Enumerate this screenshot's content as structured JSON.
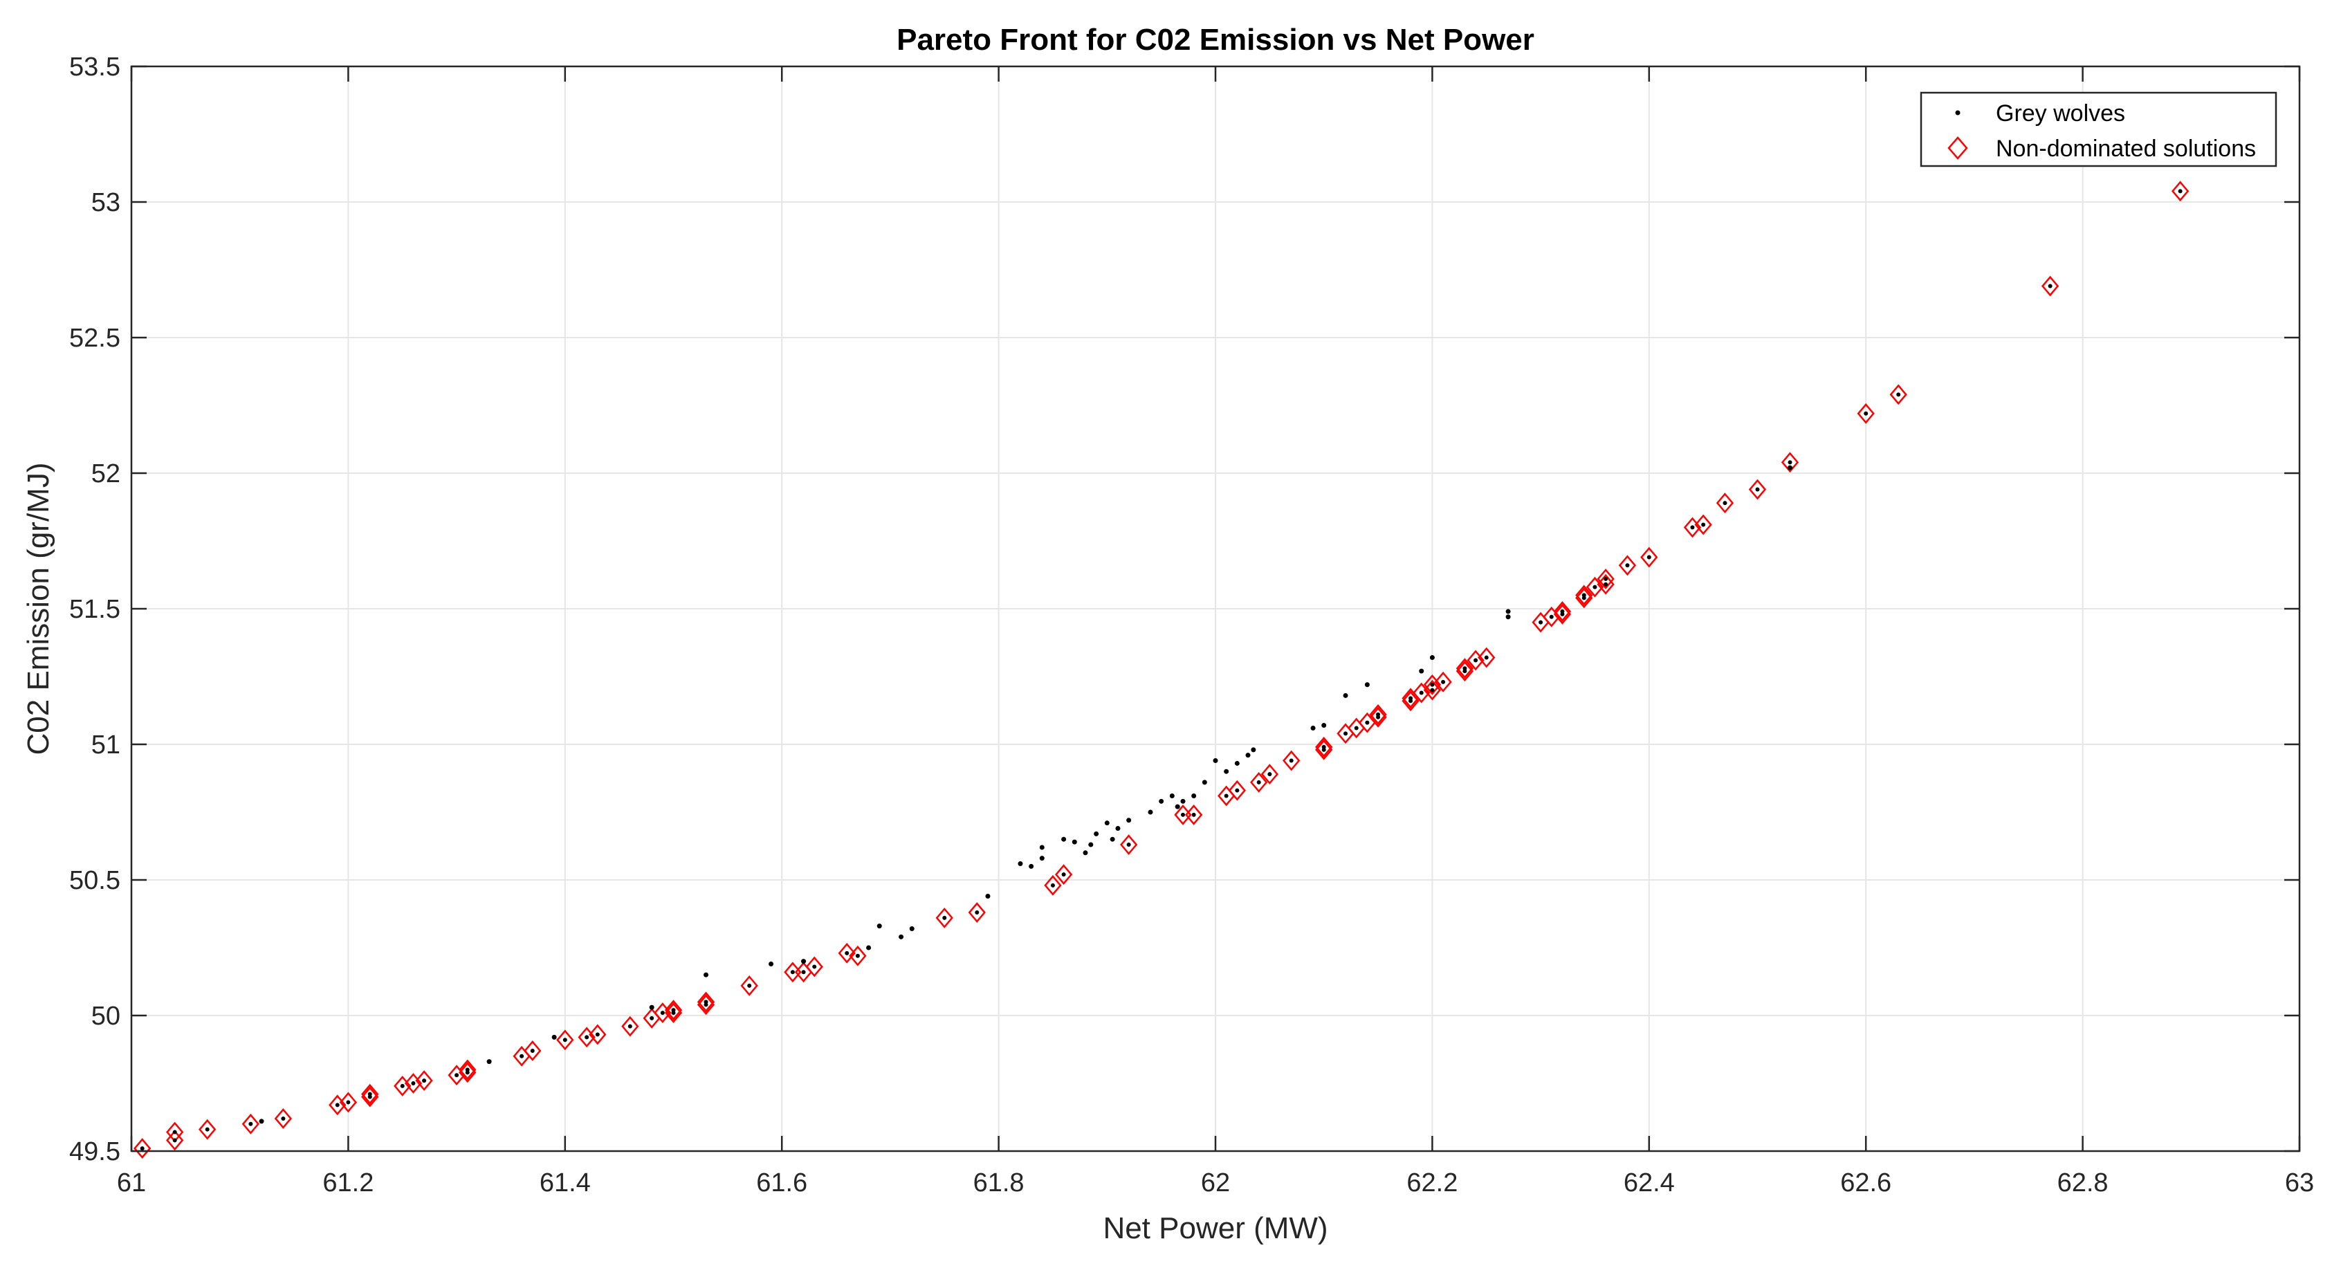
{
  "chart_data": {
    "type": "scatter",
    "title": "Pareto Front for C02 Emission vs Net Power",
    "xlabel": "Net Power (MW)",
    "ylabel": "C02 Emission (gr/MJ)",
    "xlim": [
      61,
      63
    ],
    "ylim": [
      49.5,
      53.5
    ],
    "xticks": [
      "61",
      "61.2",
      "61.4",
      "61.6",
      "61.8",
      "62",
      "62.2",
      "62.4",
      "62.6",
      "62.8",
      "63"
    ],
    "yticks": [
      "49.5",
      "50",
      "50.5",
      "51",
      "51.5",
      "52",
      "52.5",
      "53",
      "53.5"
    ],
    "grid": true,
    "legend_position": "top-right",
    "colors": {
      "wolves": "#000000",
      "nondominated": "#ff0000",
      "grid": "#e6e6e6",
      "axes": "#262626"
    },
    "series": [
      {
        "name": "Grey wolves",
        "marker": "dot",
        "points": [
          [
            61.12,
            49.61
          ],
          [
            61.33,
            49.83
          ],
          [
            61.39,
            49.92
          ],
          [
            61.48,
            50.03
          ],
          [
            61.53,
            50.15
          ],
          [
            61.59,
            50.19
          ],
          [
            61.62,
            50.2
          ],
          [
            61.68,
            50.25
          ],
          [
            61.69,
            50.33
          ],
          [
            61.71,
            50.29
          ],
          [
            61.72,
            50.32
          ],
          [
            61.79,
            50.44
          ],
          [
            61.82,
            50.56
          ],
          [
            61.83,
            50.55
          ],
          [
            61.84,
            50.58
          ],
          [
            61.84,
            50.62
          ],
          [
            61.86,
            50.65
          ],
          [
            61.87,
            50.64
          ],
          [
            61.88,
            50.6
          ],
          [
            61.885,
            50.63
          ],
          [
            61.89,
            50.67
          ],
          [
            61.9,
            50.71
          ],
          [
            61.905,
            50.65
          ],
          [
            61.91,
            50.69
          ],
          [
            61.92,
            50.72
          ],
          [
            61.94,
            50.75
          ],
          [
            61.95,
            50.79
          ],
          [
            61.96,
            50.81
          ],
          [
            61.965,
            50.77
          ],
          [
            61.97,
            50.79
          ],
          [
            61.98,
            50.81
          ],
          [
            61.99,
            50.86
          ],
          [
            62.0,
            50.94
          ],
          [
            62.01,
            50.9
          ],
          [
            62.02,
            50.93
          ],
          [
            62.03,
            50.96
          ],
          [
            62.035,
            50.98
          ],
          [
            62.09,
            51.06
          ],
          [
            62.1,
            51.07
          ],
          [
            62.12,
            51.18
          ],
          [
            62.14,
            51.22
          ],
          [
            62.19,
            51.27
          ],
          [
            62.2,
            51.32
          ],
          [
            62.27,
            51.47
          ],
          [
            62.27,
            51.49
          ],
          [
            62.53,
            52.02
          ]
        ]
      },
      {
        "name": "Non-dominated solutions",
        "marker": "diamond",
        "points": [
          [
            61.01,
            49.51
          ],
          [
            61.04,
            49.54
          ],
          [
            61.04,
            49.57
          ],
          [
            61.07,
            49.58
          ],
          [
            61.11,
            49.6
          ],
          [
            61.14,
            49.62
          ],
          [
            61.19,
            49.67
          ],
          [
            61.2,
            49.68
          ],
          [
            61.22,
            49.7
          ],
          [
            61.22,
            49.71
          ],
          [
            61.25,
            49.74
          ],
          [
            61.26,
            49.75
          ],
          [
            61.27,
            49.76
          ],
          [
            61.3,
            49.78
          ],
          [
            61.31,
            49.79
          ],
          [
            61.31,
            49.8
          ],
          [
            61.36,
            49.85
          ],
          [
            61.37,
            49.87
          ],
          [
            61.4,
            49.91
          ],
          [
            61.42,
            49.92
          ],
          [
            61.43,
            49.93
          ],
          [
            61.46,
            49.96
          ],
          [
            61.48,
            49.99
          ],
          [
            61.49,
            50.01
          ],
          [
            61.5,
            50.02
          ],
          [
            61.5,
            50.01
          ],
          [
            61.53,
            50.05
          ],
          [
            61.53,
            50.04
          ],
          [
            61.57,
            50.11
          ],
          [
            61.61,
            50.16
          ],
          [
            61.62,
            50.16
          ],
          [
            61.63,
            50.18
          ],
          [
            61.66,
            50.23
          ],
          [
            61.67,
            50.22
          ],
          [
            61.75,
            50.36
          ],
          [
            61.78,
            50.38
          ],
          [
            61.85,
            50.48
          ],
          [
            61.86,
            50.52
          ],
          [
            61.92,
            50.63
          ],
          [
            61.97,
            50.74
          ],
          [
            61.98,
            50.74
          ],
          [
            62.01,
            50.81
          ],
          [
            62.02,
            50.83
          ],
          [
            62.04,
            50.86
          ],
          [
            62.05,
            50.89
          ],
          [
            62.07,
            50.94
          ],
          [
            62.1,
            50.98
          ],
          [
            62.1,
            50.99
          ],
          [
            62.12,
            51.04
          ],
          [
            62.13,
            51.06
          ],
          [
            62.14,
            51.08
          ],
          [
            62.15,
            51.1
          ],
          [
            62.15,
            51.11
          ],
          [
            62.18,
            51.16
          ],
          [
            62.18,
            51.17
          ],
          [
            62.19,
            51.19
          ],
          [
            62.2,
            51.2
          ],
          [
            62.2,
            51.22
          ],
          [
            62.21,
            51.23
          ],
          [
            62.23,
            51.27
          ],
          [
            62.23,
            51.28
          ],
          [
            62.24,
            51.31
          ],
          [
            62.25,
            51.32
          ],
          [
            62.3,
            51.45
          ],
          [
            62.31,
            51.47
          ],
          [
            62.32,
            51.48
          ],
          [
            62.32,
            51.49
          ],
          [
            62.34,
            51.55
          ],
          [
            62.34,
            51.54
          ],
          [
            62.35,
            51.58
          ],
          [
            62.36,
            51.59
          ],
          [
            62.36,
            51.61
          ],
          [
            62.38,
            51.66
          ],
          [
            62.4,
            51.69
          ],
          [
            62.44,
            51.8
          ],
          [
            62.45,
            51.81
          ],
          [
            62.47,
            51.89
          ],
          [
            62.5,
            51.94
          ],
          [
            62.53,
            52.04
          ],
          [
            62.6,
            52.22
          ],
          [
            62.63,
            52.29
          ],
          [
            62.77,
            52.69
          ],
          [
            62.89,
            53.04
          ]
        ]
      }
    ]
  }
}
